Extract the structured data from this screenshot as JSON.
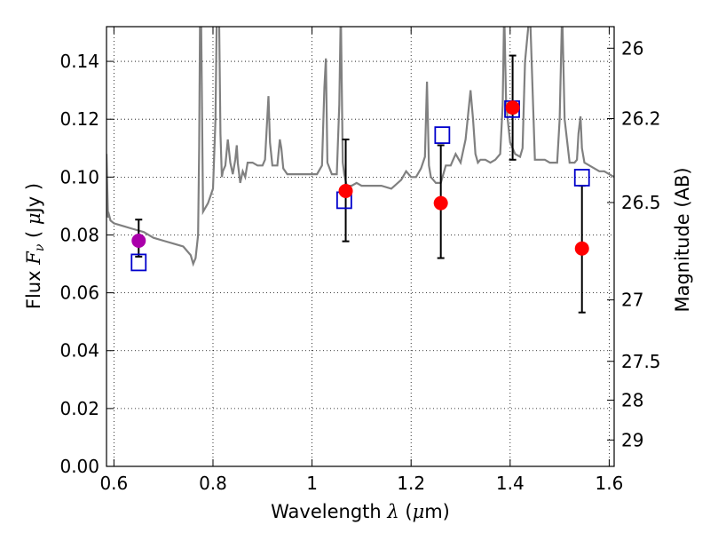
{
  "chart_data": {
    "type": "line",
    "title": "",
    "xlabel": "Wavelength  λ (μm)",
    "xlabel_parts": [
      "Wavelength  ",
      "λ",
      " (",
      "μ",
      "m)"
    ],
    "ylabel": "Flux  Fν  ( μJy )",
    "ylabel_parts": [
      "Flux  ",
      "F",
      "ν",
      "  ( ",
      "μ",
      "Jy )"
    ],
    "ylabel_right": "Magnitude (AB)",
    "xlim": [
      0.585,
      1.61
    ],
    "ylim": [
      0.0,
      0.152
    ],
    "grid": true,
    "grid_style": "dotted",
    "legend": "none",
    "x_ticks": [
      0.6,
      0.8,
      1.0,
      1.2,
      1.4,
      1.6
    ],
    "x_tick_labels": [
      "0.6",
      "0.8",
      "1",
      "1.2",
      "1.4",
      "1.6"
    ],
    "y_ticks": [
      0.0,
      0.02,
      0.04,
      0.06,
      0.08,
      0.1,
      0.12,
      0.14
    ],
    "y_tick_labels": [
      "0.00",
      "0.02",
      "0.04",
      "0.06",
      "0.08",
      "0.10",
      "0.12",
      "0.14"
    ],
    "right_ticks": [
      {
        "label": "26",
        "mag": 26.0
      },
      {
        "label": "26.2",
        "mag": 26.2
      },
      {
        "label": "26.5",
        "mag": 26.5
      },
      {
        "label": "27",
        "mag": 27.0
      },
      {
        "label": "27.5",
        "mag": 27.5
      },
      {
        "label": "28",
        "mag": 28.0
      },
      {
        "label": "29",
        "mag": 29.0
      }
    ],
    "colors": {
      "template": "#808080",
      "observed": "#ff0000",
      "observed_first": "#aa00aa",
      "model": "#0000cc",
      "errorbar": "#000000"
    },
    "series": [
      {
        "kind": "template_spectrum",
        "x": [
          0.585,
          0.588,
          0.59,
          0.593,
          0.6,
          0.62,
          0.64,
          0.66,
          0.68,
          0.7,
          0.72,
          0.74,
          0.755,
          0.76,
          0.765,
          0.77,
          0.772,
          0.774,
          0.776,
          0.78,
          0.79,
          0.8,
          0.805,
          0.808,
          0.812,
          0.815,
          0.818,
          0.82,
          0.825,
          0.83,
          0.835,
          0.84,
          0.845,
          0.848,
          0.85,
          0.855,
          0.86,
          0.865,
          0.87,
          0.88,
          0.89,
          0.9,
          0.905,
          0.908,
          0.912,
          0.915,
          0.92,
          0.93,
          0.935,
          0.938,
          0.942,
          0.95,
          0.97,
          0.99,
          1.01,
          1.02,
          1.025,
          1.028,
          1.031,
          1.04,
          1.05,
          1.055,
          1.058,
          1.062,
          1.065,
          1.07,
          1.08,
          1.09,
          1.1,
          1.12,
          1.14,
          1.16,
          1.18,
          1.19,
          1.2,
          1.21,
          1.22,
          1.228,
          1.232,
          1.236,
          1.24,
          1.25,
          1.26,
          1.27,
          1.28,
          1.29,
          1.3,
          1.31,
          1.32,
          1.325,
          1.33,
          1.335,
          1.34,
          1.35,
          1.36,
          1.37,
          1.38,
          1.385,
          1.388,
          1.392,
          1.4,
          1.41,
          1.42,
          1.425,
          1.43,
          1.44,
          1.45,
          1.46,
          1.47,
          1.48,
          1.49,
          1.495,
          1.5,
          1.505,
          1.51,
          1.52,
          1.53,
          1.535,
          1.538,
          1.542,
          1.545,
          1.55,
          1.56,
          1.57,
          1.58,
          1.59,
          1.6,
          1.61
        ],
        "y": [
          0.108,
          0.086,
          0.087,
          0.085,
          0.084,
          0.083,
          0.082,
          0.081,
          0.079,
          0.078,
          0.077,
          0.076,
          0.073,
          0.07,
          0.072,
          0.08,
          0.11,
          0.16,
          0.155,
          0.088,
          0.091,
          0.096,
          0.12,
          0.16,
          0.16,
          0.115,
          0.1,
          0.102,
          0.104,
          0.113,
          0.105,
          0.101,
          0.106,
          0.111,
          0.105,
          0.098,
          0.102,
          0.1,
          0.105,
          0.105,
          0.104,
          0.104,
          0.106,
          0.115,
          0.128,
          0.112,
          0.104,
          0.104,
          0.113,
          0.11,
          0.103,
          0.101,
          0.101,
          0.101,
          0.101,
          0.104,
          0.131,
          0.141,
          0.105,
          0.101,
          0.101,
          0.125,
          0.158,
          0.105,
          0.101,
          0.097,
          0.097,
          0.098,
          0.097,
          0.097,
          0.097,
          0.096,
          0.099,
          0.102,
          0.1,
          0.1,
          0.103,
          0.107,
          0.133,
          0.104,
          0.1,
          0.098,
          0.098,
          0.104,
          0.104,
          0.108,
          0.105,
          0.113,
          0.13,
          0.12,
          0.108,
          0.105,
          0.106,
          0.106,
          0.105,
          0.106,
          0.108,
          0.125,
          0.158,
          0.125,
          0.112,
          0.108,
          0.107,
          0.11,
          0.14,
          0.158,
          0.106,
          0.106,
          0.106,
          0.105,
          0.105,
          0.105,
          0.12,
          0.158,
          0.12,
          0.105,
          0.105,
          0.106,
          0.115,
          0.121,
          0.11,
          0.105,
          0.104,
          0.103,
          0.102,
          0.102,
          0.101,
          0.1
        ]
      },
      {
        "kind": "model_photometry",
        "marker": "open-square",
        "x": [
          0.65,
          1.065,
          1.263,
          1.404,
          1.545
        ],
        "y": [
          0.0705,
          0.092,
          0.1145,
          0.1235,
          0.0998
        ]
      },
      {
        "kind": "observed_photometry",
        "marker": "filled-circle",
        "x": [
          0.65,
          1.068,
          1.26,
          1.405,
          1.545
        ],
        "y": [
          0.078,
          0.0952,
          0.091,
          0.124,
          0.0753
        ],
        "yerr_low": [
          0.0725,
          0.0778,
          0.072,
          0.106,
          0.0532
        ],
        "yerr_high": [
          0.0853,
          0.113,
          0.111,
          0.142,
          0.097
        ]
      }
    ]
  }
}
